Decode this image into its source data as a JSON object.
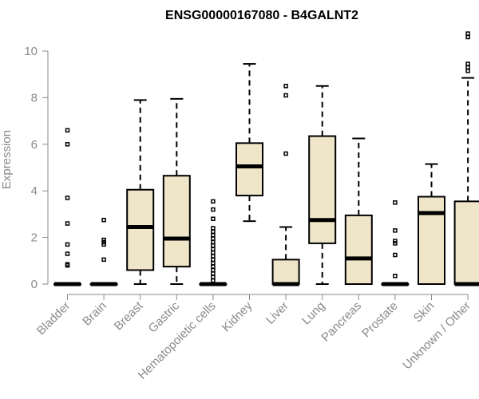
{
  "chart_data": {
    "type": "boxplot",
    "title": "ENSG00000167080 - B4GALNT2",
    "xlabel": "",
    "ylabel": "Expression",
    "ylim": [
      0,
      10.8
    ],
    "yticks": [
      0,
      2,
      4,
      6,
      8,
      10
    ],
    "grid": false,
    "colors": {
      "box_fill": "#efe6c9",
      "stroke": "#000000",
      "axis": "#8a8a8a"
    },
    "categories": [
      "Bladder",
      "Brain",
      "Breast",
      "Gastric",
      "Hematopoietic cells",
      "Kidney",
      "Liver",
      "Lung",
      "Pancreas",
      "Prostate",
      "Skin",
      "Unknown / Other"
    ],
    "boxes": [
      {
        "name": "Bladder",
        "min": 0,
        "q1": 0,
        "median": 0,
        "q3": 0,
        "max": 0,
        "outliers": [
          0.8,
          0.85,
          1.3,
          1.7,
          2.6,
          3.7,
          6.0,
          6.6
        ]
      },
      {
        "name": "Brain",
        "min": 0,
        "q1": 0,
        "median": 0,
        "q3": 0,
        "max": 0,
        "outliers": [
          1.05,
          1.7,
          1.8,
          1.9,
          2.75
        ]
      },
      {
        "name": "Breast",
        "min": 0,
        "q1": 0.6,
        "median": 2.45,
        "q3": 4.05,
        "max": 7.9,
        "outliers": []
      },
      {
        "name": "Gastric",
        "min": 0,
        "q1": 0.75,
        "median": 1.95,
        "q3": 4.65,
        "max": 7.95,
        "outliers": []
      },
      {
        "name": "Hematopoietic cells",
        "min": 0,
        "q1": 0,
        "median": 0,
        "q3": 0,
        "max": 0,
        "outliers": [
          0.15,
          0.3,
          0.45,
          0.6,
          0.75,
          0.9,
          1.05,
          1.2,
          1.35,
          1.5,
          1.65,
          1.8,
          1.95,
          2.1,
          2.25,
          2.4,
          2.8,
          3.2,
          3.55
        ]
      },
      {
        "name": "Kidney",
        "min": 2.7,
        "q1": 3.8,
        "median": 5.05,
        "q3": 6.05,
        "max": 9.45,
        "outliers": []
      },
      {
        "name": "Liver",
        "min": 0,
        "q1": 0,
        "median": 0,
        "q3": 1.05,
        "max": 2.45,
        "outliers": [
          5.6,
          8.1,
          8.5
        ]
      },
      {
        "name": "Lung",
        "min": 0,
        "q1": 1.75,
        "median": 2.75,
        "q3": 6.35,
        "max": 8.5,
        "outliers": []
      },
      {
        "name": "Pancreas",
        "min": 0,
        "q1": 0,
        "median": 1.1,
        "q3": 2.95,
        "max": 6.25,
        "outliers": []
      },
      {
        "name": "Prostate",
        "min": 0,
        "q1": 0,
        "median": 0,
        "q3": 0,
        "max": 0,
        "outliers": [
          0.35,
          1.25,
          1.75,
          1.85,
          2.3,
          3.5
        ]
      },
      {
        "name": "Skin",
        "min": 0,
        "q1": 0,
        "median": 3.05,
        "q3": 3.75,
        "max": 5.15,
        "outliers": []
      },
      {
        "name": "Unknown / Other",
        "min": 0,
        "q1": 0,
        "median": 0,
        "q3": 3.55,
        "max": 8.85,
        "outliers": [
          9.15,
          9.3,
          9.45,
          10.6,
          10.75
        ]
      }
    ]
  }
}
